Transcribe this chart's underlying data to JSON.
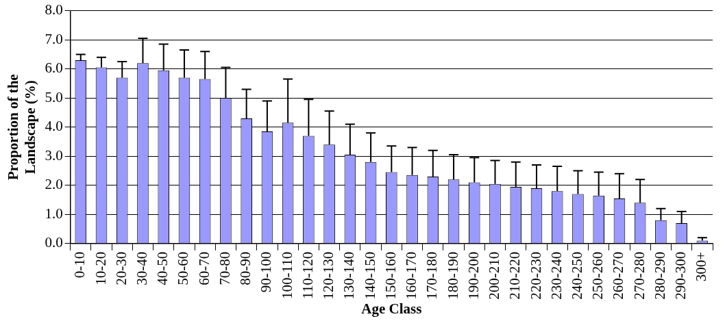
{
  "chart_data": {
    "type": "bar",
    "xlabel": "Age Class",
    "ylabel": "Proportion of the Landscape (%)",
    "categories": [
      "0-10",
      "10-20",
      "20-30",
      "30-40",
      "40-50",
      "50-60",
      "60-70",
      "70-80",
      "80-90",
      "90-100",
      "100-110",
      "110-120",
      "120-130",
      "130-140",
      "140-150",
      "150-160",
      "160-170",
      "170-180",
      "180-190",
      "190-200",
      "200-210",
      "210-220",
      "220-230",
      "230-240",
      "240-250",
      "250-260",
      "260-270",
      "270-280",
      "280-290",
      "290-300",
      "300+"
    ],
    "series": [
      {
        "color": "#9999ff",
        "values": [
          6.3,
          6.05,
          5.7,
          6.2,
          5.95,
          5.7,
          5.65,
          5.0,
          4.3,
          3.85,
          4.15,
          3.7,
          3.4,
          3.05,
          2.8,
          2.45,
          2.35,
          2.3,
          2.2,
          2.1,
          2.05,
          1.95,
          1.9,
          1.8,
          1.7,
          1.65,
          1.55,
          1.4,
          0.8,
          0.7,
          0.1
        ],
        "errors": [
          [
            6.3,
            6.5
          ],
          [
            6.05,
            6.4
          ],
          [
            5.7,
            6.25
          ],
          [
            6.2,
            7.05
          ],
          [
            5.95,
            6.85
          ],
          [
            5.7,
            6.65
          ],
          [
            5.65,
            6.6
          ],
          [
            5.0,
            6.05
          ],
          [
            4.3,
            5.3
          ],
          [
            3.85,
            4.9
          ],
          [
            4.15,
            5.65
          ],
          [
            3.7,
            4.95
          ],
          [
            3.4,
            4.55
          ],
          [
            3.05,
            4.1
          ],
          [
            2.8,
            3.8
          ],
          [
            2.45,
            3.35
          ],
          [
            2.35,
            3.3
          ],
          [
            2.3,
            3.2
          ],
          [
            2.2,
            3.05
          ],
          [
            2.1,
            2.95
          ],
          [
            2.05,
            2.85
          ],
          [
            1.95,
            2.8
          ],
          [
            1.9,
            2.7
          ],
          [
            1.8,
            2.65
          ],
          [
            1.7,
            2.5
          ],
          [
            1.65,
            2.45
          ],
          [
            1.55,
            2.4
          ],
          [
            1.4,
            2.2
          ],
          [
            0.8,
            1.2
          ],
          [
            0.7,
            1.1
          ],
          [
            0.1,
            0.2
          ]
        ]
      }
    ],
    "ylim": [
      0,
      8
    ],
    "yticks": [
      {
        "value": 0,
        "label": "0.0"
      },
      {
        "value": 1,
        "label": "1.0"
      },
      {
        "value": 2,
        "label": "2.0"
      },
      {
        "value": 3,
        "label": "3.0"
      },
      {
        "value": 4,
        "label": "4.0"
      },
      {
        "value": 5,
        "label": "5.0"
      },
      {
        "value": 6,
        "label": "6.0"
      },
      {
        "value": 7,
        "label": "7.0"
      },
      {
        "value": 8,
        "label": "8.0"
      }
    ],
    "grid": "y",
    "legend": false
  }
}
